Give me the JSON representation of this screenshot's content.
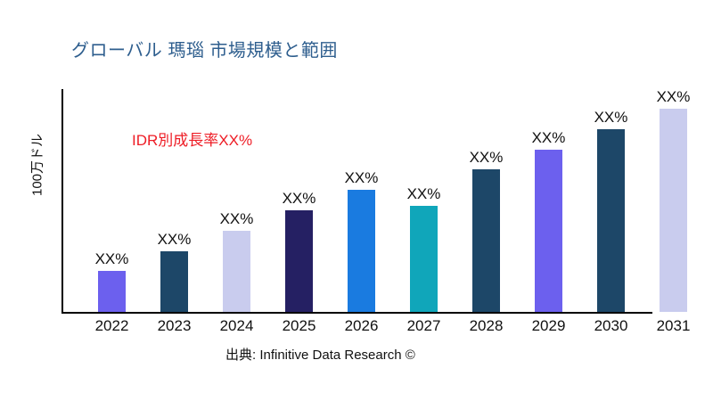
{
  "title": "グローバル 瑪瑙 市場規模と範囲",
  "source": "出典: Infinitive Data Research ©",
  "colors": {
    "title": "#2E5E8E",
    "annotation": "#EE1C25",
    "axis": "#000000",
    "background": "#ffffff"
  },
  "chart_data": {
    "type": "bar",
    "title": "グローバル 瑪瑙 市場規模と範囲",
    "annotation": "IDR別成長率XX%",
    "xlabel": "",
    "ylabel": "100万ドル",
    "categories": [
      "2022",
      "2023",
      "2024",
      "2025",
      "2026",
      "2027",
      "2028",
      "2029",
      "2030",
      "2031"
    ],
    "values": [
      20,
      30,
      40,
      50,
      60,
      52,
      70,
      80,
      90,
      100
    ],
    "bar_labels": [
      "XX%",
      "XX%",
      "XX%",
      "XX%",
      "XX%",
      "XX%",
      "XX%",
      "XX%",
      "XX%",
      "XX%"
    ],
    "bar_colors": [
      "#6C60EE",
      "#1D4768",
      "#C9CCEE",
      "#252063",
      "#1A7BE0",
      "#10A6BA",
      "#1D4768",
      "#6C60EE",
      "#1D4768",
      "#C9CCEE"
    ],
    "ylim": [
      0,
      100
    ],
    "grid": false,
    "legend": false,
    "y_ticks_visible": false
  }
}
